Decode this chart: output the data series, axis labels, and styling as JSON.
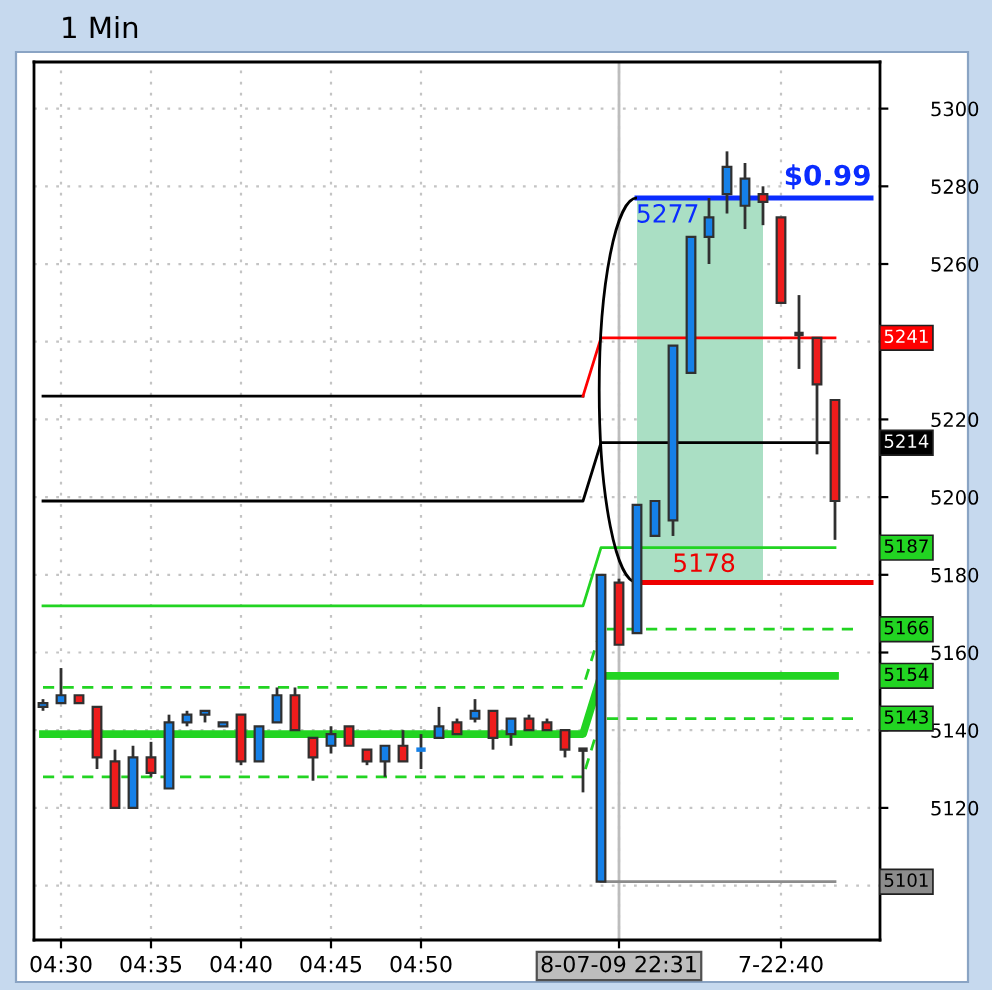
{
  "chart_data": {
    "type": "candlestick",
    "title": "1 Min",
    "categories": [
      null,
      "04:30",
      null,
      null,
      null,
      null,
      "04:35",
      null,
      null,
      null,
      null,
      "04:40",
      null,
      null,
      null,
      null,
      "04:45",
      null,
      null,
      null,
      null,
      "04:50",
      null,
      null,
      null,
      null,
      null,
      null,
      null,
      null,
      null,
      null,
      "8-07-09 22:31",
      null,
      null,
      null,
      null,
      null,
      null,
      null,
      null,
      "7-22:40",
      null,
      null,
      null,
      null,
      null
    ],
    "ohlc": [
      [
        5146,
        5148,
        5145,
        5147
      ],
      [
        5147,
        5156,
        5147,
        5149
      ],
      [
        5149,
        5149,
        5147,
        5147
      ],
      [
        5146,
        5146,
        5130,
        5133
      ],
      [
        5132,
        5135,
        5120,
        5120
      ],
      [
        5120,
        5136,
        5120,
        5133
      ],
      [
        5133,
        5137,
        5128,
        5129
      ],
      [
        5125,
        5144,
        5125,
        5142
      ],
      [
        5142,
        5145,
        5141,
        5144
      ],
      [
        5144,
        5145,
        5142,
        5145
      ],
      [
        5141,
        5142,
        5141,
        5142
      ],
      [
        5144,
        5144,
        5131,
        5132
      ],
      [
        5132,
        5141,
        5132,
        5141
      ],
      [
        5142,
        5151,
        5142,
        5149
      ],
      [
        5149,
        5151,
        5140,
        5140
      ],
      [
        5138,
        5138,
        5127,
        5133
      ],
      [
        5136,
        5141,
        5134,
        5139
      ],
      [
        5141,
        5141,
        5136,
        5136
      ],
      [
        5135,
        5135,
        5131,
        5132
      ],
      [
        5132,
        5136,
        5128,
        5136
      ],
      [
        5136,
        5140,
        5132,
        5132
      ],
      [
        5135,
        5139,
        5130,
        5135
      ],
      [
        5138,
        5146,
        5138,
        5141
      ],
      [
        5142,
        5143,
        5139,
        5139
      ],
      [
        5143,
        5148,
        5142,
        5145
      ],
      [
        5145,
        5145,
        5135,
        5138
      ],
      [
        5139,
        5143,
        5136,
        5143
      ],
      [
        5143,
        5144,
        5140,
        5140
      ],
      [
        5142,
        5143,
        5140,
        5140
      ],
      [
        5140,
        5140,
        5133,
        5135
      ],
      [
        5135,
        5135,
        5124,
        5135
      ],
      [
        5101,
        5180,
        5101,
        5180
      ],
      [
        5178,
        5179,
        5162,
        5162
      ],
      [
        5165,
        5198,
        5165,
        5198
      ],
      [
        5190,
        5199,
        5190,
        5199
      ],
      [
        5194,
        5239,
        5190,
        5239
      ],
      [
        5232,
        5267,
        5232,
        5267
      ],
      [
        5267,
        5277,
        5260,
        5272
      ],
      [
        5278,
        5289,
        5273,
        5285
      ],
      [
        5275,
        5286,
        5269,
        5282
      ],
      [
        5278,
        5280,
        5270,
        5276
      ],
      [
        5272,
        5272,
        5250,
        5250
      ],
      [
        5242,
        5252,
        5233,
        5242
      ],
      [
        5241,
        5241,
        5211,
        5229
      ],
      [
        5225,
        5225,
        5189,
        5199
      ],
      null,
      null
    ],
    "colors": [
      "#1580e8",
      "#1580e8",
      "#ee1c1c",
      "#ee1c1c",
      "#ee1c1c",
      "#1580e8",
      "#ee1c1c",
      "#1580e8",
      "#1580e8",
      "#1580e8",
      "#1580e8",
      "#ee1c1c",
      "#1580e8",
      "#1580e8",
      "#ee1c1c",
      "#ee1c1c",
      "#1580e8",
      "#ee1c1c",
      "#ee1c1c",
      "#1580e8",
      "#ee1c1c",
      "#1580e8",
      "#1580e8",
      "#ee1c1c",
      "#1580e8",
      "#ee1c1c",
      "#1580e8",
      "#ee1c1c",
      "#ee1c1c",
      "#ee1c1c",
      "#303030",
      "#1580e8",
      "#ee1c1c",
      "#1580e8",
      "#1580e8",
      "#1580e8",
      "#1580e8",
      "#1580e8",
      "#1580e8",
      "#1580e8",
      "#ee1c1c",
      "#ee1c1c",
      "#303030",
      "#ee1c1c",
      "#ee1c1c",
      null,
      null
    ],
    "ylim": [
      5086,
      5312
    ],
    "yticks": [
      {
        "value": 5100,
        "label": null
      },
      5120,
      5140,
      5160,
      5180,
      5200,
      5220,
      {
        "value": 5240,
        "label": null
      },
      5260,
      5280,
      5300
    ],
    "grid": true,
    "series": [
      {
        "type": "line",
        "color": "#000000",
        "line_style": "solid",
        "values": [
          5226,
          5226,
          5226,
          5226,
          5226,
          5226,
          5226,
          5226,
          5226,
          5226,
          5226,
          5226,
          5226,
          5226,
          5226,
          5226,
          5226,
          5226,
          5226,
          5226,
          5226,
          5226,
          5226,
          5226,
          5226,
          5226,
          5226,
          5226,
          5226,
          5226,
          5226,
          null,
          null,
          null,
          null,
          null,
          null,
          null,
          null,
          null,
          null,
          null,
          null,
          null,
          null,
          null,
          null
        ]
      },
      {
        "type": "line",
        "color": "#ff0000",
        "line_style": "solid",
        "values": [
          null,
          null,
          null,
          null,
          null,
          null,
          null,
          null,
          null,
          null,
          null,
          null,
          null,
          null,
          null,
          null,
          null,
          null,
          null,
          null,
          null,
          null,
          null,
          null,
          null,
          null,
          null,
          null,
          null,
          null,
          5226,
          5241,
          5241,
          5241,
          5241,
          5241,
          5241,
          5241,
          5241,
          5241,
          5241,
          5241,
          5241,
          5241,
          5241,
          null,
          null
        ]
      },
      {
        "type": "line",
        "color": "#000000",
        "line_style": "solid",
        "values": [
          5199,
          5199,
          5199,
          5199,
          5199,
          5199,
          5199,
          5199,
          5199,
          5199,
          5199,
          5199,
          5199,
          5199,
          5199,
          5199,
          5199,
          5199,
          5199,
          5199,
          5199,
          5199,
          5199,
          5199,
          5199,
          5199,
          5199,
          5199,
          5199,
          5199,
          5199,
          5214,
          5214,
          5214,
          5214,
          5214,
          5214,
          5214,
          5214,
          5214,
          5214,
          5214,
          5214,
          5214,
          5214,
          null,
          null
        ]
      },
      {
        "type": "line",
        "color": "#22d422",
        "line_style": "solid",
        "values": [
          5172,
          5172,
          5172,
          5172,
          5172,
          5172,
          5172,
          5172,
          5172,
          5172,
          5172,
          5172,
          5172,
          5172,
          5172,
          5172,
          5172,
          5172,
          5172,
          5172,
          5172,
          5172,
          5172,
          5172,
          5172,
          5172,
          5172,
          5172,
          5172,
          5172,
          5172,
          5187,
          5187,
          5187,
          5187,
          5187,
          5187,
          5187,
          5187,
          5187,
          5187,
          5187,
          5187,
          5187,
          5187,
          null,
          null
        ]
      },
      {
        "type": "line",
        "color": "#22d422",
        "line_style": "dashed",
        "values": [
          5151,
          5151,
          5151,
          5151,
          5151,
          5151,
          5151,
          5151,
          5151,
          5151,
          5151,
          5151,
          5151,
          5151,
          5151,
          5151,
          5151,
          5151,
          5151,
          5151,
          5151,
          5151,
          5151,
          5151,
          5151,
          5151,
          5151,
          5151,
          5151,
          5151,
          5151,
          5166,
          5166,
          5166,
          5166,
          5166,
          5166,
          5166,
          5166,
          5166,
          5166,
          5166,
          5166,
          5166,
          5166,
          5166,
          null
        ]
      },
      {
        "type": "line",
        "color": "#22d422",
        "line_style": "solid",
        "values": [
          5139,
          5139,
          5139,
          5139,
          5139,
          5139,
          5139,
          5139,
          5139,
          5139,
          5139,
          5139,
          5139,
          5139,
          5139,
          5139,
          5139,
          5139,
          5139,
          5139,
          5139,
          5139,
          5139,
          5139,
          5139,
          5139,
          5139,
          5139,
          5139,
          5139,
          5139,
          5154,
          5154,
          5154,
          5154,
          5154,
          5154,
          5154,
          5154,
          5154,
          5154,
          5154,
          5154,
          5154,
          5154,
          null,
          null
        ]
      },
      {
        "type": "line",
        "color": "#22d422",
        "line_style": "dashed",
        "values": [
          5128,
          5128,
          5128,
          5128,
          5128,
          5128,
          5128,
          5128,
          5128,
          5128,
          5128,
          5128,
          5128,
          5128,
          5128,
          5128,
          5128,
          5128,
          5128,
          5128,
          5128,
          5128,
          5128,
          5128,
          5128,
          5128,
          5128,
          5128,
          5128,
          5128,
          5128,
          5143,
          5143,
          5143,
          5143,
          5143,
          5143,
          5143,
          5143,
          5143,
          5143,
          5143,
          5143,
          5143,
          5143,
          5143,
          null
        ]
      },
      {
        "type": "line",
        "color": "#8c8c8c",
        "line_style": "solid",
        "values": [
          null,
          null,
          null,
          null,
          null,
          null,
          null,
          null,
          null,
          null,
          null,
          null,
          null,
          null,
          null,
          null,
          null,
          null,
          null,
          null,
          null,
          null,
          null,
          null,
          null,
          null,
          null,
          null,
          null,
          null,
          null,
          5101,
          5101,
          5101,
          5101,
          5101,
          5101,
          5101,
          5101,
          5101,
          5101,
          5101,
          5101,
          5101,
          5101,
          null,
          null
        ]
      },
      {
        "type": "line",
        "color": "#0a2cff",
        "line_style": "solid",
        "values": [
          null,
          null,
          null,
          null,
          null,
          null,
          null,
          null,
          null,
          null,
          null,
          null,
          null,
          null,
          null,
          null,
          null,
          null,
          null,
          null,
          null,
          null,
          null,
          null,
          null,
          null,
          null,
          null,
          null,
          null,
          null,
          null,
          null,
          5277,
          5277,
          5277,
          5277,
          5277,
          5277,
          5277,
          5277,
          5277,
          5277,
          5277,
          5277,
          5277,
          5277
        ]
      },
      {
        "type": "line",
        "color": "#ee0000",
        "line_style": "solid",
        "values": [
          null,
          null,
          null,
          null,
          null,
          null,
          null,
          null,
          null,
          null,
          null,
          null,
          null,
          null,
          null,
          null,
          null,
          null,
          null,
          null,
          null,
          null,
          null,
          null,
          null,
          null,
          null,
          null,
          null,
          null,
          null,
          null,
          null,
          5178,
          5178,
          5178,
          5178,
          5178,
          5178,
          5178,
          5178,
          5178,
          5178,
          5178,
          5178,
          5178,
          5178
        ]
      }
    ],
    "ref_lines": [
      {
        "axis": "x",
        "value": "8-07-09 22:31",
        "color": "#bdbdbd"
      }
    ],
    "annotations": [
      {
        "text": "5277",
        "y": 5277
      },
      {
        "text": "5178",
        "y": 5178
      },
      {
        "text": "$0.99",
        "y": 5277
      },
      {
        "text": "5241",
        "y": 5241
      },
      {
        "text": "5214",
        "y": 5214
      },
      {
        "text": "5187",
        "y": 5187
      },
      {
        "text": "5166",
        "y": 5166
      },
      {
        "text": "5154",
        "y": 5154
      },
      {
        "text": "5143",
        "y": 5143
      },
      {
        "text": "5101",
        "y": 5101
      }
    ]
  }
}
